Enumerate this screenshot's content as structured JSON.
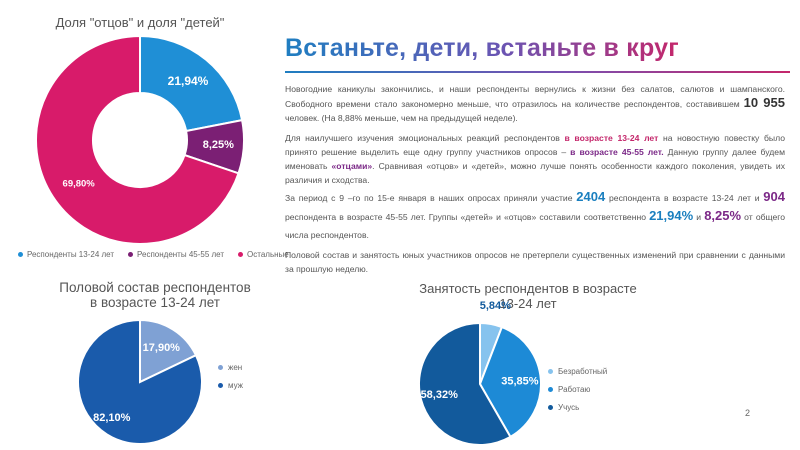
{
  "page": {
    "number": "2"
  },
  "heading": {
    "part1": "Встаньте",
    "part2": ", дети, встаньте в круг"
  },
  "paragraphs": {
    "p1": {
      "text1": "Новогодние каникулы закончились, и наши респонденты вернулись к жизни без салатов, салютов и шампанского. Свободного времени стало закономерно меньше, что отразилось на количестве респондентов, составившем ",
      "number": "10 955",
      "text2": " человек. (На 8,88% меньше, чем на предыдущей неделе)."
    },
    "p2": {
      "text1": "Для наилучшего изучения эмоциональных реакций респондентов ",
      "em1": "в возрасте 13-24 лет",
      "text2": " на новостную повестку было принято решение выделить еще одну группу участников опросов – ",
      "em2": "в возрасте 45-55 лет.",
      "text3": " Данную группу далее будем именовать ",
      "em3": "«отцами»",
      "text4": ". Сравнивая «отцов» и «детей», можно лучше понять особенности каждого поколения, увидеть их различия и сходства."
    },
    "p3": {
      "text1": "За период с 9 –го по 15-е января в наших опросах приняли участие ",
      "num1": "2404",
      "text2": " респондента в возрасте 13-24 лет и ",
      "num2": "904",
      "text3": " респондента в возрасте 45-55 лет. Группы «детей» и «отцов» составили соответственно ",
      "num3": "21,94%",
      "text4": " и ",
      "num4": "8,25%",
      "text5": " от общего числа респондентов."
    },
    "p4": {
      "text": "Половой состав и занятость юных участников опросов не претерпели существенных изменений при сравнении с данными за прошлую неделю."
    }
  },
  "chart_data": [
    {
      "type": "pie",
      "style": "donut",
      "title": "Доля \"отцов\" и доля \"детей\"",
      "categories": [
        "Респонденты 13-24 лет",
        "Респонденты 45-55 лет",
        "Остальные"
      ],
      "values": [
        21.94,
        8.25,
        69.8
      ],
      "labels": [
        "21,94%",
        "8,25%",
        "69,80%"
      ],
      "colors": [
        "#1f8fd6",
        "#7b1f74",
        "#d81b6a"
      ],
      "legend": "bottom"
    },
    {
      "type": "pie",
      "title": "Половой состав респондентов в возрасте 13-24 лет",
      "categories": [
        "жен",
        "муж"
      ],
      "values": [
        17.9,
        82.1
      ],
      "labels": [
        "17,90%",
        "82,10%"
      ],
      "colors": [
        "#7fa1d4",
        "#1a5bab"
      ],
      "legend": "right"
    },
    {
      "type": "pie",
      "title": "Занятость респондентов в возрасте 13-24 лет",
      "categories": [
        "Безработный",
        "Работаю",
        "Учусь"
      ],
      "values": [
        5.84,
        35.85,
        58.32
      ],
      "labels": [
        "5,84%",
        "35,85%",
        "58,32%"
      ],
      "colors": [
        "#86c3ee",
        "#1d8ad6",
        "#125a9c"
      ],
      "legend": "right"
    }
  ]
}
